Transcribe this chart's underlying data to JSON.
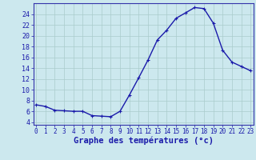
{
  "hours": [
    0,
    1,
    2,
    3,
    4,
    5,
    6,
    7,
    8,
    9,
    10,
    11,
    12,
    13,
    14,
    15,
    16,
    17,
    18,
    19,
    20,
    21,
    22,
    23
  ],
  "temps": [
    7.2,
    6.9,
    6.2,
    6.1,
    6.0,
    6.0,
    5.2,
    5.1,
    5.0,
    6.0,
    9.0,
    12.2,
    15.5,
    19.2,
    21.0,
    23.2,
    24.2,
    25.2,
    25.0,
    22.3,
    17.3,
    15.1,
    14.3,
    13.5
  ],
  "line_color": "#1a1aaa",
  "marker": "+",
  "marker_size": 3,
  "marker_linewidth": 0.8,
  "line_width": 1.0,
  "bg_color": "#cce8ee",
  "grid_color": "#aacccc",
  "xlabel": "Graphe des températures (°c)",
  "xlabel_color": "#1a1aaa",
  "tick_color": "#1a1aaa",
  "ylim": [
    3.5,
    26.0
  ],
  "yticks": [
    4,
    6,
    8,
    10,
    12,
    14,
    16,
    18,
    20,
    22,
    24
  ],
  "xticks": [
    0,
    1,
    2,
    3,
    4,
    5,
    6,
    7,
    8,
    9,
    10,
    11,
    12,
    13,
    14,
    15,
    16,
    17,
    18,
    19,
    20,
    21,
    22,
    23
  ],
  "xlim": [
    -0.3,
    23.3
  ],
  "spine_color": "#3333aa",
  "tick_fontsize": 5.5,
  "xlabel_fontsize": 7.5,
  "ytick_fontsize": 6.0
}
